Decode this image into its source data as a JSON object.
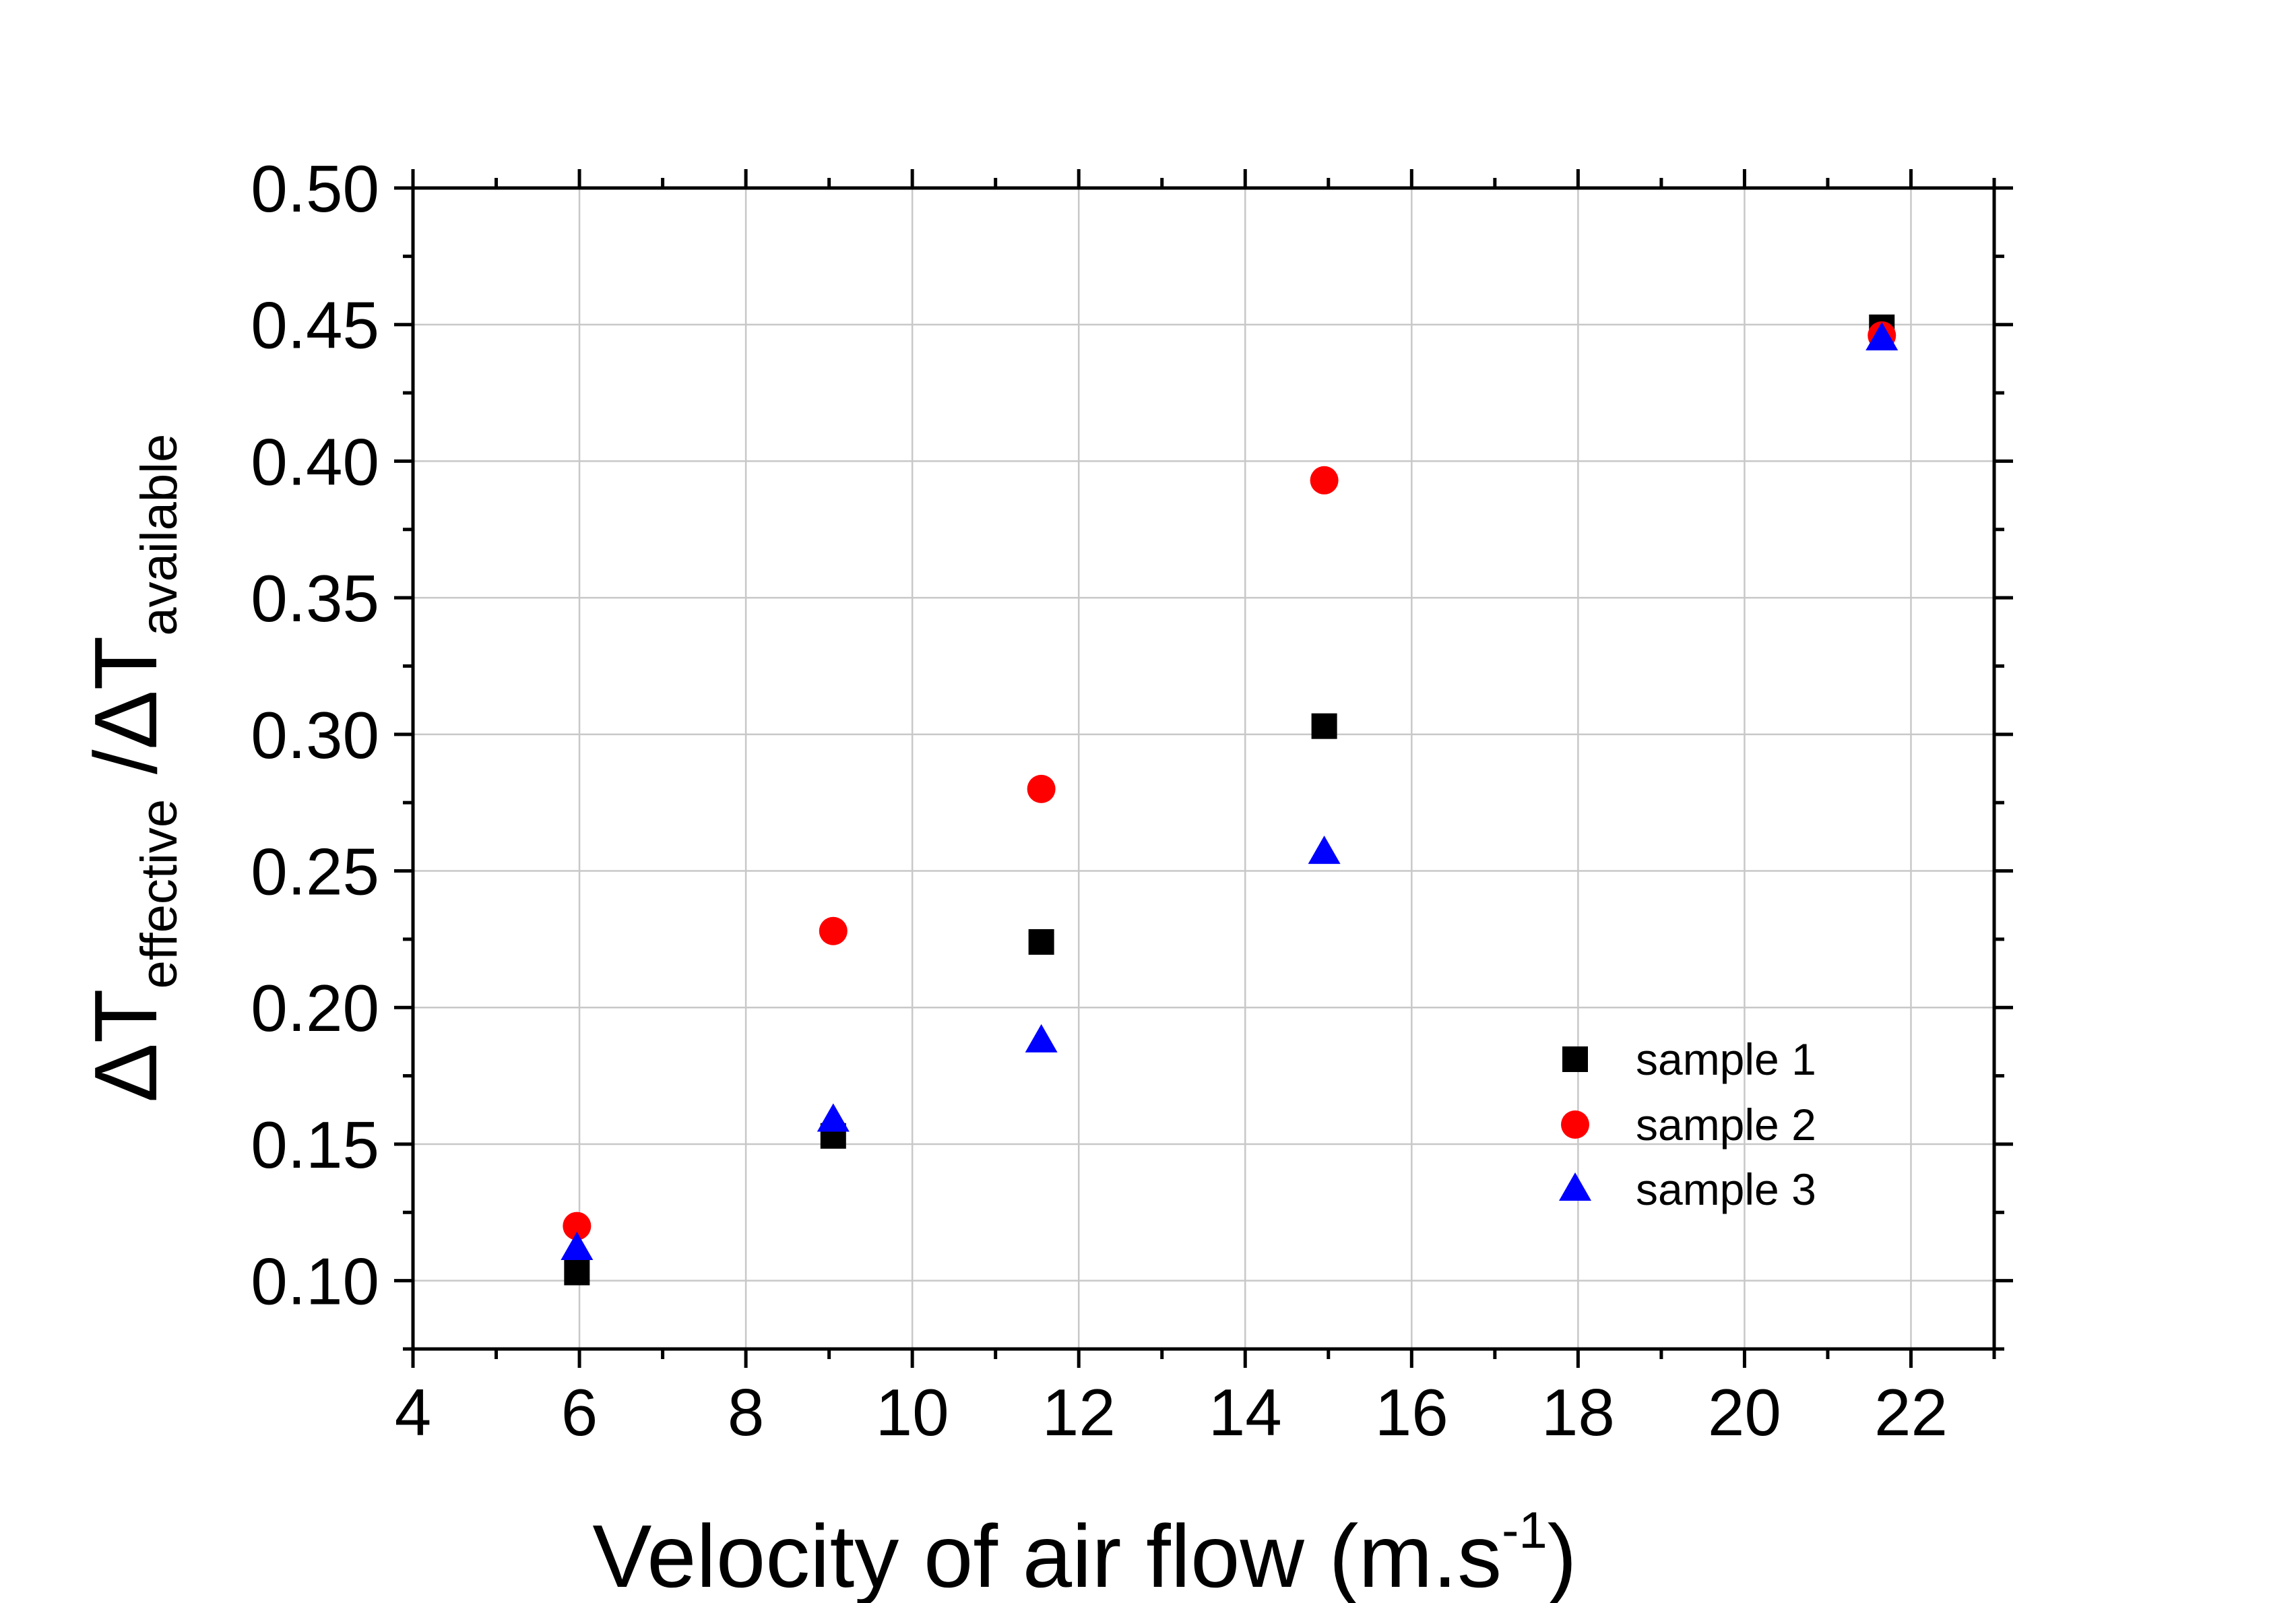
{
  "chart_data": {
    "type": "scatter",
    "title": "",
    "xlabel": "Velocity of air flow (m.s",
    "xlabel_sup": "-1",
    "xlabel_close": ")",
    "ylabel_delta1": "Δ",
    "ylabel_T1": "T",
    "ylabel_sub1": "effective",
    "ylabel_slash": " /",
    "ylabel_delta2": "Δ",
    "ylabel_T2": "T",
    "ylabel_sub2": "available",
    "xlim": [
      4,
      23
    ],
    "ylim": [
      0.075,
      0.5
    ],
    "xticks": [
      4,
      6,
      8,
      10,
      12,
      14,
      16,
      18,
      20,
      22
    ],
    "xtick_labels": [
      "4",
      "6",
      "8",
      "10",
      "12",
      "14",
      "16",
      "18",
      "20",
      "22"
    ],
    "yticks": [
      0.1,
      0.15,
      0.2,
      0.25,
      0.3,
      0.35,
      0.4,
      0.45,
      0.5
    ],
    "ytick_labels": [
      "0.10",
      "0.15",
      "0.20",
      "0.25",
      "0.30",
      "0.35",
      "0.40",
      "0.45",
      "0.50"
    ],
    "grid": true,
    "legend_position": "lower-right",
    "series": [
      {
        "name": "sample 1",
        "marker": "square",
        "color": "#000000",
        "x": [
          5.97,
          9.05,
          11.55,
          14.95,
          21.65
        ],
        "y": [
          0.103,
          0.153,
          0.224,
          0.303,
          0.449
        ]
      },
      {
        "name": "sample 2",
        "marker": "circle",
        "color": "#ff0000",
        "x": [
          5.97,
          9.05,
          11.55,
          14.95,
          21.65
        ],
        "y": [
          0.12,
          0.228,
          0.28,
          0.393,
          0.446
        ]
      },
      {
        "name": "sample 3",
        "marker": "triangle",
        "color": "#0000ff",
        "x": [
          5.97,
          9.05,
          11.55,
          14.95,
          21.65
        ],
        "y": [
          0.112,
          0.159,
          0.188,
          0.257,
          0.445
        ]
      }
    ]
  }
}
